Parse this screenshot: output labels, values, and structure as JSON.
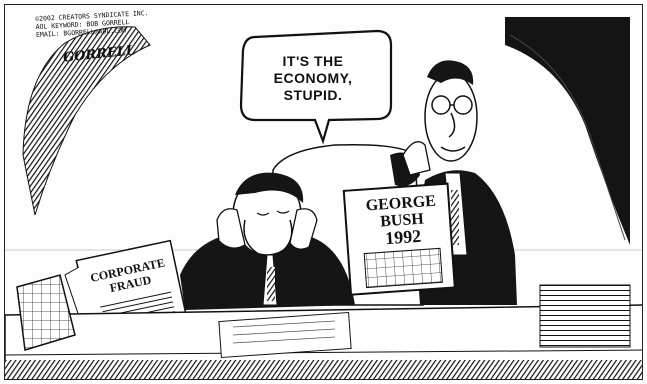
{
  "credit": {
    "line1": "©2002 CREATORS SYNDICATE INC.",
    "line2": "AOL KEYWORD: BOB GORRELL",
    "line3": "EMAIL: BGORRELL@AOL.COM",
    "signature": "GORRELL"
  },
  "speech_bubble": {
    "line1": "IT'S THE",
    "line2": "ECONOMY,",
    "line3": "STUPID."
  },
  "sign": {
    "line1": "GEORGE",
    "line2": "BUSH",
    "line3": "1992"
  },
  "newspaper": {
    "line1": "CORPORATE",
    "line2": "FRAUD"
  }
}
